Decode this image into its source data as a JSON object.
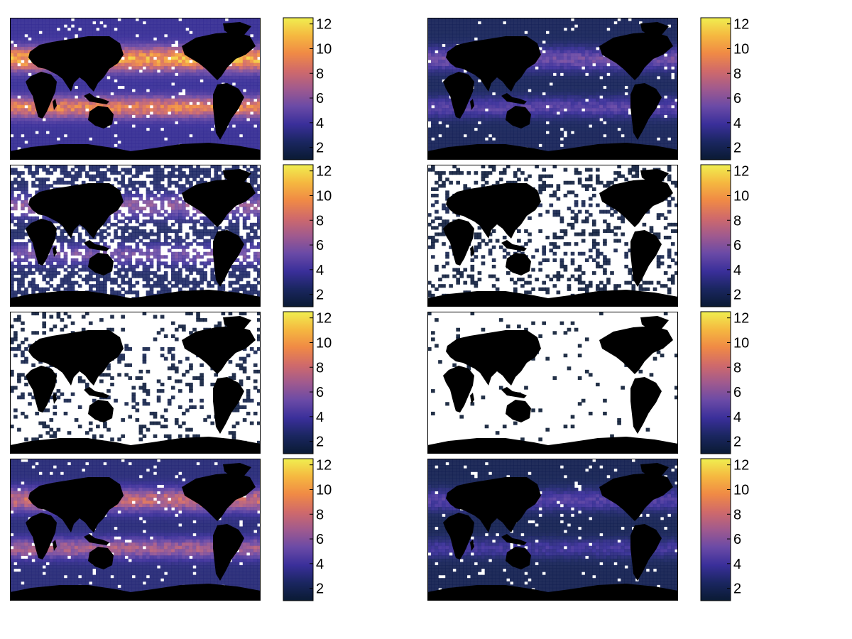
{
  "figure": {
    "layout": "4 rows x 2 columns of global maps, each with its own vertical colorbar"
  },
  "colormap": {
    "name": "thermal",
    "stops": [
      "#0a1a33",
      "#1a2660",
      "#3a2f9a",
      "#6a4aa6",
      "#a05a8e",
      "#d06a6a",
      "#f08a45",
      "#f5b840",
      "#f0ef50"
    ],
    "land_color": "#000000",
    "missing_color": "#ffffff"
  },
  "chart_data": [
    {
      "type": "heatmap",
      "row": 1,
      "col": 1,
      "coverage": "full ocean",
      "peak_level": 12,
      "colorbar": {
        "ticks": [
          2,
          4,
          6,
          8,
          10,
          12
        ],
        "tick_labels": [
          "2",
          "4",
          "6",
          "8",
          "10",
          "12"
        ],
        "range": [
          1,
          12.5
        ]
      }
    },
    {
      "type": "heatmap",
      "row": 1,
      "col": 2,
      "coverage": "full ocean",
      "peak_level": 6,
      "colorbar": {
        "ticks": [
          2,
          4,
          6,
          8,
          10,
          12
        ],
        "tick_labels": [
          "2",
          "4",
          "6",
          "8",
          "10",
          "12"
        ],
        "range": [
          1,
          12.5
        ]
      }
    },
    {
      "type": "heatmap",
      "row": 2,
      "col": 1,
      "coverage": "partial ocean",
      "peak_level": 7,
      "colorbar": {
        "ticks": [
          2,
          4,
          6,
          8,
          10,
          12
        ],
        "tick_labels": [
          "2",
          "4",
          "6",
          "8",
          "10",
          "12"
        ],
        "range": [
          1,
          12.5
        ]
      }
    },
    {
      "type": "heatmap",
      "row": 2,
      "col": 2,
      "coverage": "sparse patches",
      "peak_level": 2,
      "colorbar": {
        "ticks": [
          2,
          4,
          6,
          8,
          10,
          12
        ],
        "tick_labels": [
          "2",
          "4",
          "6",
          "8",
          "10",
          "12"
        ],
        "range": [
          1,
          12.5
        ]
      }
    },
    {
      "type": "heatmap",
      "row": 3,
      "col": 1,
      "coverage": "sparse streaks",
      "peak_level": 2,
      "colorbar": {
        "ticks": [
          2,
          4,
          6,
          8,
          10,
          12
        ],
        "tick_labels": [
          "2",
          "4",
          "6",
          "8",
          "10",
          "12"
        ],
        "range": [
          1,
          12.5
        ]
      }
    },
    {
      "type": "heatmap",
      "row": 3,
      "col": 2,
      "coverage": "almost none",
      "peak_level": 1,
      "colorbar": {
        "ticks": [
          2,
          4,
          6,
          8,
          10,
          12
        ],
        "tick_labels": [
          "2",
          "4",
          "6",
          "8",
          "10",
          "12"
        ],
        "range": [
          1,
          12.5
        ]
      }
    },
    {
      "type": "heatmap",
      "row": 4,
      "col": 1,
      "coverage": "full ocean",
      "peak_level": 9,
      "colorbar": {
        "ticks": [
          2,
          4,
          6,
          8,
          10,
          12
        ],
        "tick_labels": [
          "2",
          "4",
          "6",
          "8",
          "10",
          "12"
        ],
        "range": [
          1,
          12.5
        ]
      }
    },
    {
      "type": "heatmap",
      "row": 4,
      "col": 2,
      "coverage": "full ocean",
      "peak_level": 5,
      "colorbar": {
        "ticks": [
          2,
          4,
          6,
          8,
          10,
          12
        ],
        "tick_labels": [
          "2",
          "4",
          "6",
          "8",
          "10",
          "12"
        ],
        "range": [
          1,
          12.5
        ]
      }
    }
  ]
}
